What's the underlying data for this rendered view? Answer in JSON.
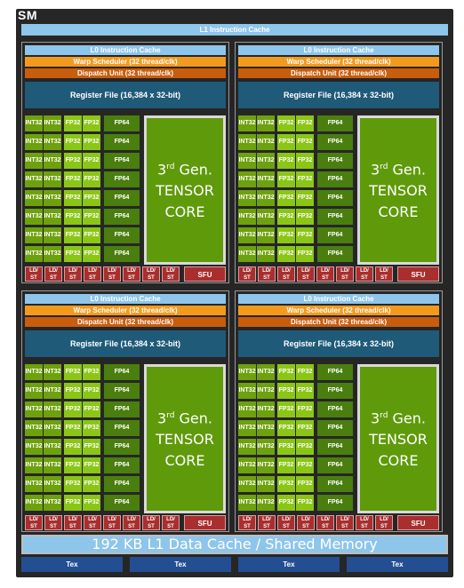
{
  "sm_label": "SM",
  "l1_instruction_cache": "L1 Instruction Cache",
  "processing_block": {
    "l0_instruction_cache": "L0 Instruction Cache",
    "warp_scheduler": "Warp Scheduler (32 thread/clk)",
    "dispatch_unit": "Dispatch Unit (32 thread/clk)",
    "register_file": "Register File (16,384 x 32-bit)",
    "int32_label": "INT32",
    "fp32_label": "FP32",
    "fp64_label": "FP64",
    "tensor_core": {
      "gen": "3",
      "gen_suffix": "rd",
      "gen_word": "Gen.",
      "line2": "TENSOR",
      "line3": "CORE"
    },
    "ldst_top": "LD/",
    "ldst_bottom": "ST",
    "sfu": "SFU"
  },
  "processing_block_count": 4,
  "l1_data_cache": "192 KB L1 Data Cache / Shared Memory",
  "tex_units": [
    "Tex",
    "Tex",
    "Tex",
    "Tex"
  ],
  "colors": {
    "background": "#262626",
    "cache": "#8ec5ea",
    "warp_scheduler": "#f39a1e",
    "dispatch_unit": "#c95d0e",
    "register_file": "#1f5a78",
    "int32": "#6ea10e",
    "fp32": "#8bc617",
    "fp64": "#4a7e0f",
    "tensor_core": "#5f9a0a",
    "ldst_sfu": "#a92e2e",
    "tex": "#234e92"
  }
}
